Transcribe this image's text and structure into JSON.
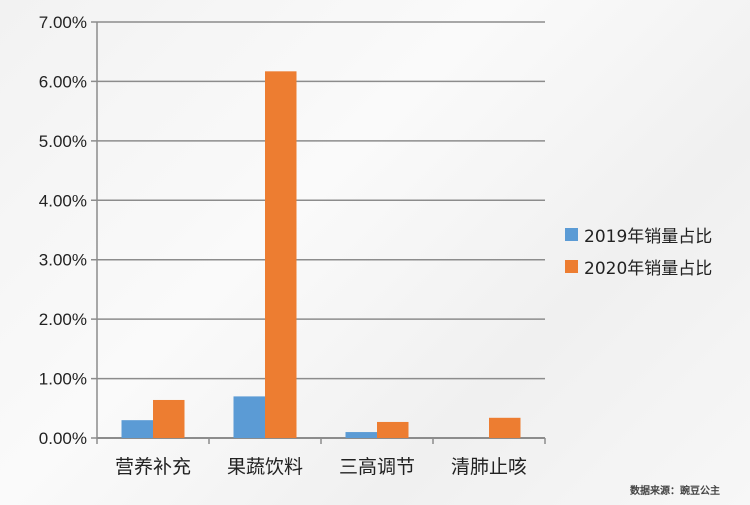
{
  "chart_data": {
    "type": "bar",
    "title": "",
    "xlabel": "",
    "ylabel": "",
    "categories": [
      "营养补充",
      "果蔬饮料",
      "三高调节",
      "清肺止咳"
    ],
    "series": [
      {
        "name": "2019年销量占比",
        "color": "#5b9bd5",
        "values": [
          0.3,
          0.7,
          0.1,
          0.0
        ]
      },
      {
        "name": "2020年销量占比",
        "color": "#ed7d31",
        "values": [
          0.64,
          6.17,
          0.27,
          0.34
        ]
      }
    ],
    "ylim": [
      0,
      7
    ],
    "yticks": [
      "0.00%",
      "1.00%",
      "2.00%",
      "3.00%",
      "4.00%",
      "5.00%",
      "6.00%",
      "7.00%"
    ],
    "grid": true,
    "legend": "right"
  },
  "source": "数据来源：豌豆公主"
}
